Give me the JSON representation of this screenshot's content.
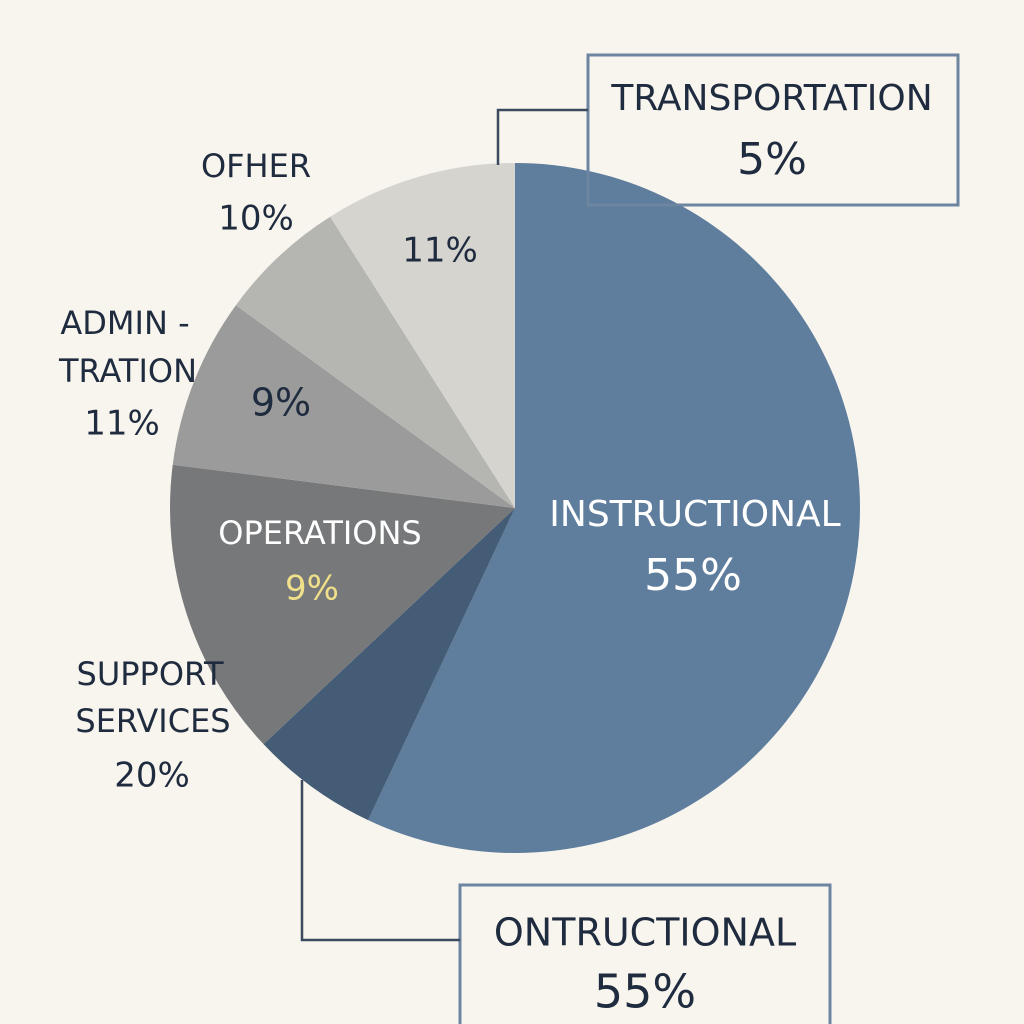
{
  "chart_data": {
    "type": "pie",
    "values": [
      57,
      6,
      14,
      8,
      6,
      9
    ],
    "colors": [
      "#5f7d9c",
      "#455c76",
      "#77787a",
      "#9a9b9a",
      "#b5b5b2",
      "#d6d4cf"
    ],
    "annotations": [
      [
        "TRANSPORTATION",
        "5%"
      ],
      [
        "OFHER",
        "10%"
      ],
      [
        "11%"
      ],
      [
        "ADMIN -",
        "TRATION",
        "11%"
      ],
      [
        "9%"
      ],
      [
        "INSTRUCTIONAL",
        "55%"
      ],
      [
        "OPERATIONS",
        "9%"
      ],
      [
        "SUPPORT",
        "SERVICES",
        "20%"
      ],
      [
        "ONTRUCTIONAL",
        "55%"
      ]
    ]
  }
}
